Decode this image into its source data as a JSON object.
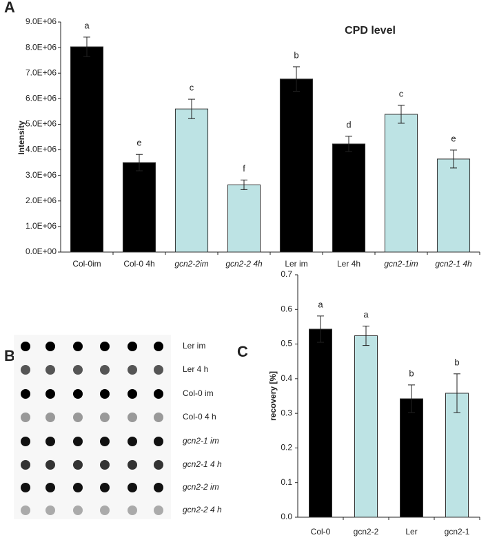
{
  "chart_data": [
    {
      "type": "bar",
      "panel_label": "A",
      "title": "CPD level",
      "y_label": "Intensity",
      "categories": [
        "Col-0im",
        "Col-0 4h",
        "gcn2-2im",
        "gcn2-2 4h",
        "Ler im",
        "Ler 4h",
        "gcn2-1im",
        "gcn2-1 4h"
      ],
      "values": [
        8030000,
        3500000,
        5600000,
        2630000,
        6770000,
        4230000,
        5390000,
        3640000
      ],
      "errors": [
        380000,
        320000,
        380000,
        190000,
        480000,
        300000,
        350000,
        350000
      ],
      "annotations": [
        "a",
        "e",
        "c",
        "f",
        "b",
        "d",
        "c",
        "e"
      ],
      "colors": [
        "#000000",
        "#000000",
        "#bde3e4",
        "#bde3e4",
        "#000000",
        "#000000",
        "#bde3e4",
        "#bde3e4"
      ],
      "ylim": [
        0,
        9000000
      ],
      "yticks": [
        {
          "value": 0,
          "label": "0.0E+00"
        },
        {
          "value": 1000000,
          "label": "1.0E+06"
        },
        {
          "value": 2000000,
          "label": "2.0E+06"
        },
        {
          "value": 3000000,
          "label": "3.0E+06"
        },
        {
          "value": 4000000,
          "label": "4.0E+06"
        },
        {
          "value": 5000000,
          "label": "5.0E+06"
        },
        {
          "value": 6000000,
          "label": "6.0E+06"
        },
        {
          "value": 7000000,
          "label": "7.0E+06"
        },
        {
          "value": 8000000,
          "label": "8.0E+06"
        },
        {
          "value": 9000000,
          "label": "9.0E+06"
        }
      ]
    },
    {
      "type": "bar",
      "panel_label": "C",
      "y_label": "recovery [%]",
      "categories": [
        "Col-0",
        "gcn2-2",
        "Ler",
        "gcn2-1"
      ],
      "values": [
        0.543,
        0.524,
        0.342,
        0.358
      ],
      "errors": [
        0.038,
        0.028,
        0.04,
        0.056
      ],
      "annotations": [
        "a",
        "a",
        "b",
        "b"
      ],
      "colors": [
        "#000000",
        "#bde3e4",
        "#000000",
        "#bde3e4"
      ],
      "ylim": [
        0,
        0.7
      ],
      "yticks": [
        {
          "value": 0,
          "label": "0.0"
        },
        0.1,
        0.2,
        0.3,
        0.4,
        0.5,
        0.6,
        0.7
      ]
    }
  ],
  "blot": {
    "panel_label": "B",
    "row_labels": [
      "Ler im",
      "Ler 4 h",
      "Col-0 im",
      "Col-0 4 h",
      "gcn2-1 im",
      "gcn2-1 4 h",
      "gcn2-2 im",
      "gcn2-2 4 h"
    ]
  }
}
